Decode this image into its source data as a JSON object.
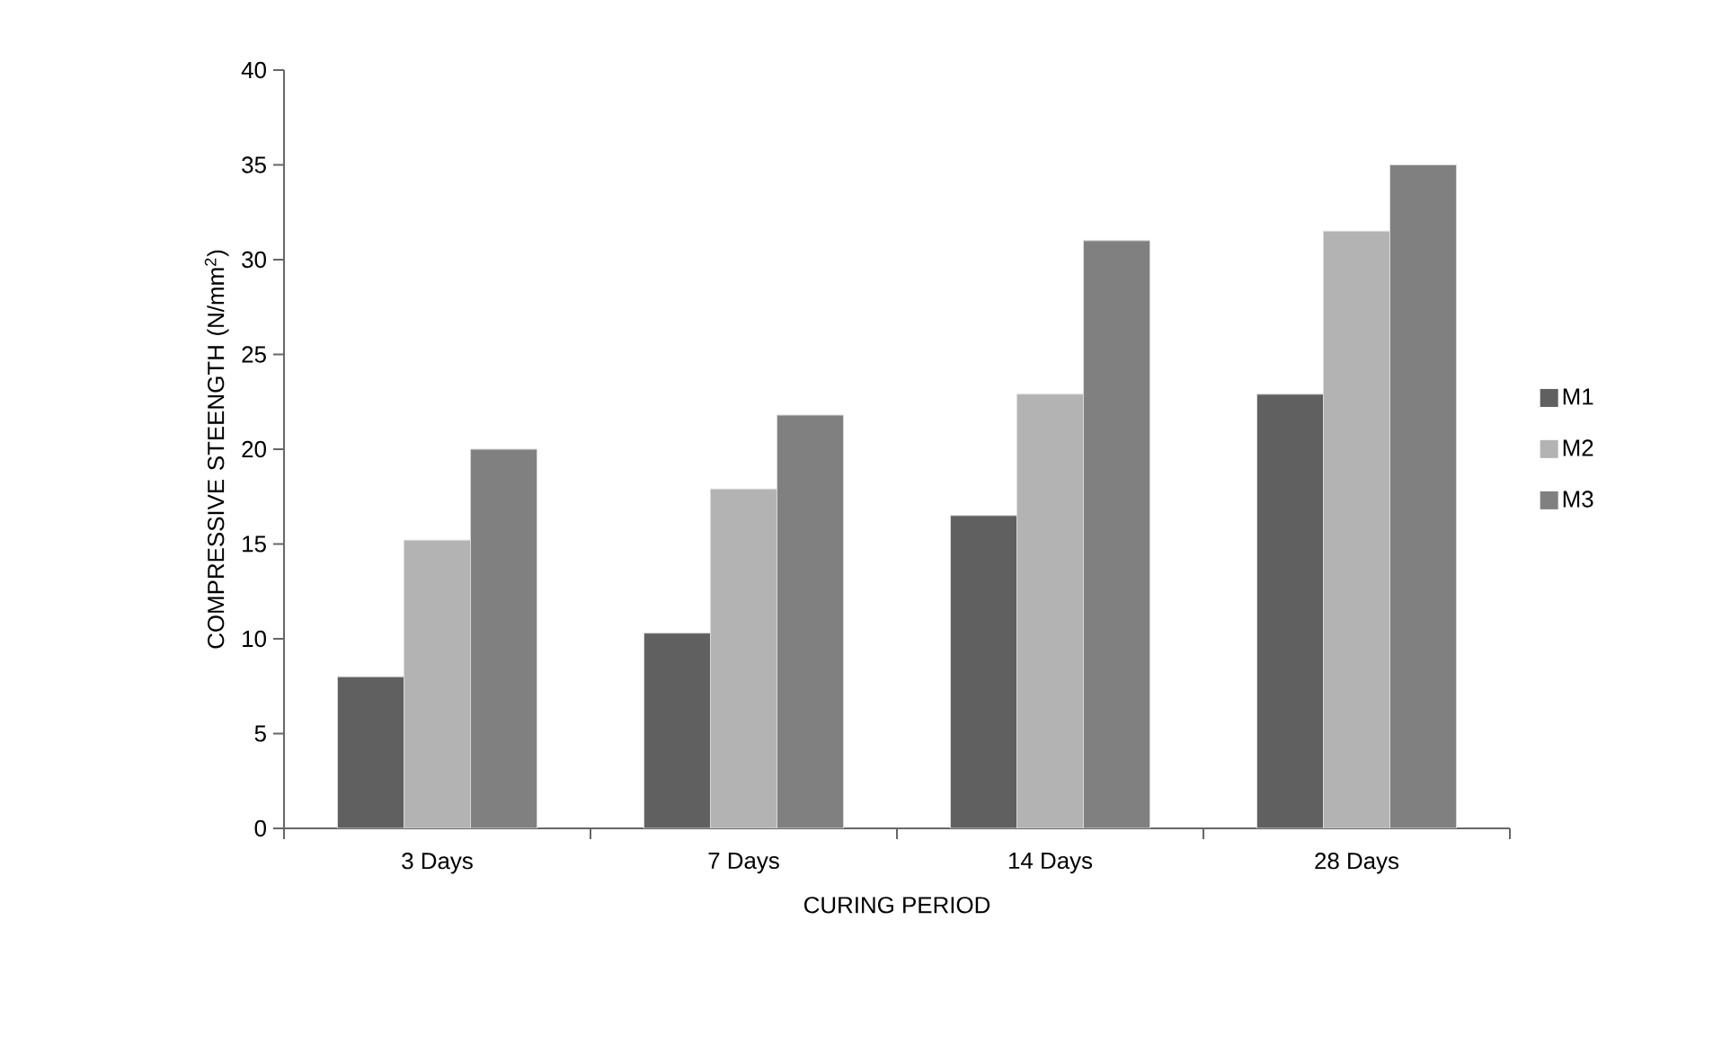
{
  "chart_data": {
    "type": "bar",
    "xlabel": "CURING PERIOD",
    "ylabel": "COMPRESSIVE STEENGTH (N/mm$^{2}$)",
    "categories": [
      "3 Days",
      "7 Days",
      "14 Days",
      "28 Days"
    ],
    "series": [
      {
        "name": "M1",
        "color": "#606060",
        "values": [
          8.0,
          10.3,
          16.5,
          22.9
        ]
      },
      {
        "name": "M2",
        "color": "#b3b3b3",
        "values": [
          15.2,
          17.9,
          22.9,
          31.5
        ]
      },
      {
        "name": "M3",
        "color": "#808080",
        "values": [
          20.0,
          21.8,
          31.0,
          35.0
        ]
      }
    ],
    "ylim": [
      0,
      40
    ],
    "yticks": [
      0,
      5,
      10,
      15,
      20,
      25,
      30,
      35,
      40
    ],
    "grid": false,
    "legend": "right"
  }
}
